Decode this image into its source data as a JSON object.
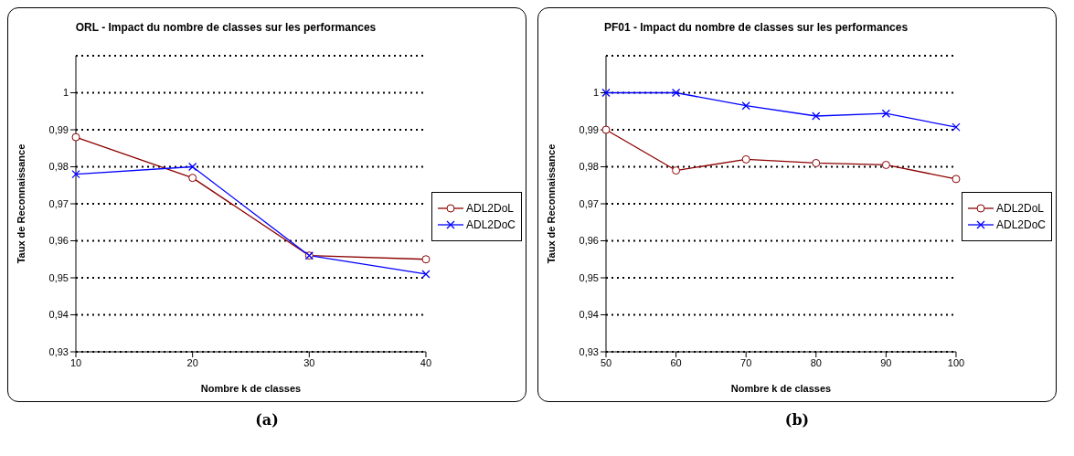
{
  "chart_data": [
    {
      "type": "line",
      "title": "ORL - Impact du nombre de classes sur les performances",
      "xlabel": "Nombre k de classes",
      "ylabel": "Taux de Reconnaissance",
      "categories": [
        "10",
        "20",
        "30",
        "40"
      ],
      "series": [
        {
          "name": "ADL2DoL",
          "color": "#8b0000",
          "marker": "circle",
          "values": [
            0.988,
            0.977,
            0.956,
            0.955
          ]
        },
        {
          "name": "ADL2DoC",
          "color": "#0000ff",
          "marker": "cross",
          "values": [
            0.978,
            0.98,
            0.956,
            0.951
          ]
        }
      ],
      "ylim": [
        0.93,
        1.01
      ],
      "yticks": [
        {
          "value": 0.93,
          "label": "0,93"
        },
        {
          "value": 0.94,
          "label": "0,94"
        },
        {
          "value": 0.95,
          "label": "0,95"
        },
        {
          "value": 0.96,
          "label": "0,96"
        },
        {
          "value": 0.97,
          "label": "0,97"
        },
        {
          "value": 0.98,
          "label": "0,98"
        },
        {
          "value": 0.99,
          "label": "0,99"
        },
        1
      ],
      "grid": "y",
      "legend": "right",
      "annotations": [
        "(a)"
      ]
    },
    {
      "type": "line",
      "title": "PF01 - Impact du nombre de classes sur les performances",
      "xlabel": "Nombre k de classes",
      "ylabel": "Taux de Reconnaissance",
      "categories": [
        "50",
        "60",
        "70",
        "80",
        "90",
        "100"
      ],
      "series": [
        {
          "name": "ADL2DoL",
          "color": "#8b0000",
          "marker": "circle",
          "values": [
            0.99,
            0.979,
            0.982,
            0.981,
            0.9805,
            0.9767
          ]
        },
        {
          "name": "ADL2DoC",
          "color": "#0000ff",
          "marker": "cross",
          "values": [
            1,
            1,
            0.9965,
            0.9937,
            0.9944,
            0.9907
          ]
        }
      ],
      "ylim": [
        0.93,
        1.01
      ],
      "yticks": [
        {
          "value": 0.93,
          "label": "0,93"
        },
        {
          "value": 0.94,
          "label": "0,94"
        },
        {
          "value": 0.95,
          "label": "0,95"
        },
        {
          "value": 0.96,
          "label": "0,96"
        },
        {
          "value": 0.97,
          "label": "0,97"
        },
        {
          "value": 0.98,
          "label": "0,98"
        },
        {
          "value": 0.99,
          "label": "0,99"
        },
        1
      ],
      "grid": "y",
      "legend": "right",
      "annotations": [
        "(b)"
      ]
    }
  ]
}
